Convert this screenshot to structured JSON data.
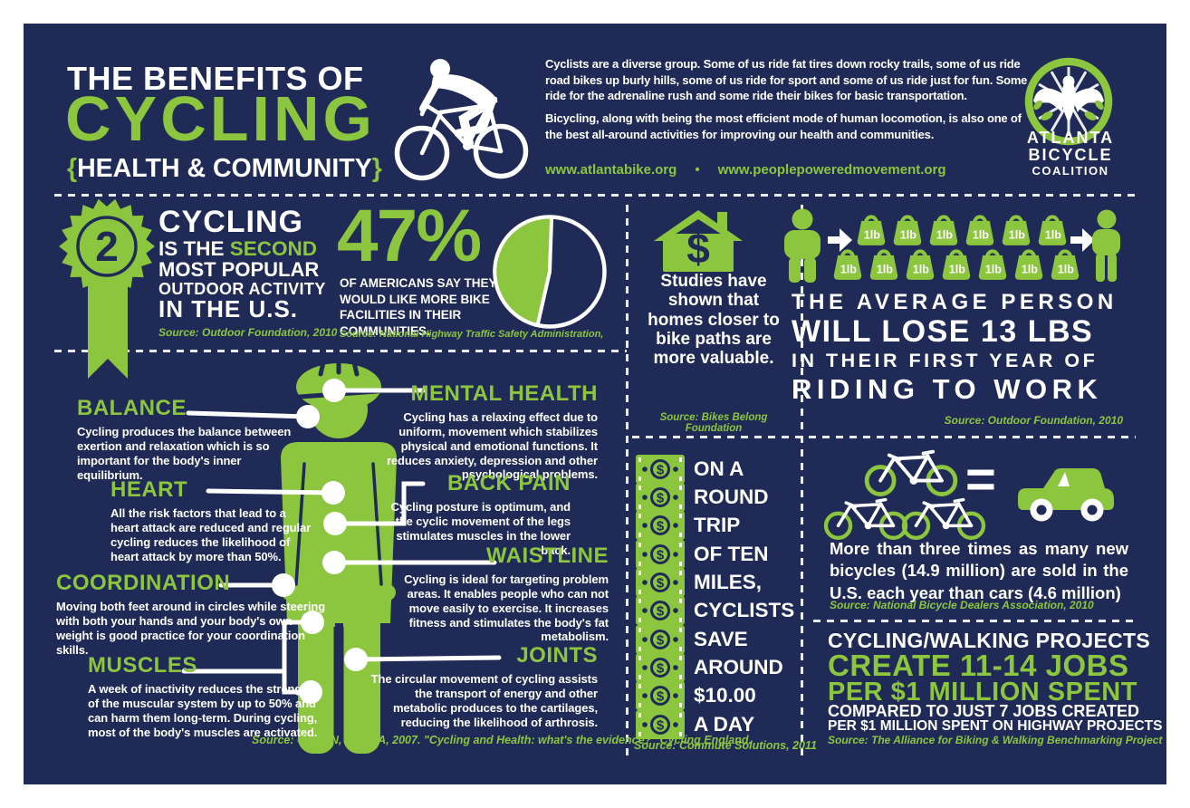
{
  "colors": {
    "navy": "#1f2a56",
    "green": "#8cc63f",
    "white": "#ffffff"
  },
  "header": {
    "title_prefix": "THE BENEFITS OF",
    "title_main": "CYCLING",
    "subtitle_open": "{",
    "subtitle": "HEALTH & COMMUNITY",
    "subtitle_close": "}",
    "intro_p1": "Cyclists are a diverse group. Some of us ride fat tires down rocky trails, some of us ride road bikes up burly hills, some of us ride for sport and some of us ride just for fun. Some ride for the adrenaline rush and some ride their bikes for basic transportation.",
    "intro_p2": "Bicycling, along with being the most efficient mode of human locomotion, is also one of the best all-around activities for improving our health and communities.",
    "url_left": "www.atlantabike.org",
    "url_separator": "•",
    "url_right": "www.peoplepoweredmovement.org",
    "logo_line1": "ATLANTA",
    "logo_line2": "BICYCLE",
    "logo_line3": "COALITION"
  },
  "popularity": {
    "badge_number": "2",
    "line1": "CYCLING",
    "line2_prefix": "IS THE ",
    "line2_highlight": "SECOND",
    "line3": "MOST POPULAR",
    "line4": "OUTDOOR ACTIVITY",
    "line5": "IN THE U.S.",
    "source": "Source: Outdoor Foundation, 2010"
  },
  "facilities": {
    "stat": "47%",
    "description": "OF AMERICANS SAY THEY WOULD LIKE MORE BIKE FACILITIES IN THEIR COMMUNITIES.",
    "source": "Source: National Highway Traffic Safety Administration,"
  },
  "homes": {
    "dollar_sign": "$",
    "text": "Studies have shown that homes closer to bike paths are more valuable.",
    "source": "Source: Bikes Belong Foundation"
  },
  "weight_loss": {
    "bag_label": "1lb",
    "bags_row1_count": 6,
    "bags_row2_count": 7,
    "line1": "THE AVERAGE PERSON",
    "line2": "WILL LOSE 13 LBS",
    "line3": "IN THEIR FIRST YEAR OF",
    "line4": "RIDING TO WORK",
    "source": "Source: Outdoor Foundation, 2010"
  },
  "body_benefits": {
    "balance": {
      "title": "BALANCE",
      "text": "Cycling produces the balance between exertion and relaxation which is so important for the body's inner equilibrium."
    },
    "heart": {
      "title": "HEART",
      "text": "All the risk factors that lead to a heart attack are reduced and regular cycling reduces the likelihood of heart attack by more than 50%."
    },
    "coordination": {
      "title": "COORDINATION",
      "text": "Moving both feet around in circles while steering with both your hands and your body's own weight is good practice for your coordination skills."
    },
    "muscles": {
      "title": "MUSCLES",
      "text": "A week of inactivity reduces the strength of the muscular system by up to 50% and can harm them long-term. During cycling, most of the body's muscles are activated."
    },
    "mental_health": {
      "title": "MENTAL HEALTH",
      "text": "Cycling has a relaxing effect due to uniform, movement which stabilizes physical and emotional functions. It reduces anxiety, depression and other psychological problems."
    },
    "back_pain": {
      "title": "BACK PAIN",
      "text": "Cycling posture is optimum, and the cyclic movement of the legs stimulates muscles in the lower back."
    },
    "waistline": {
      "title": "WAISTLINE",
      "text": "Cycling is ideal for targeting problem areas. It enables people who can not move easily to exercise. It increases fitness and stimulates the body's fat metabolism."
    },
    "joints": {
      "title": "JOINTS",
      "text": "The circular movement of cycling assists the transport of energy and other metabolic produces to the cartilages, reducing the likelihood of arthrosis."
    },
    "source": "Source: Cavill N, Davis A, 2007. \"Cycling and Health: what's the evidence?\" Cycling England."
  },
  "savings": {
    "lines": [
      "ON A",
      "ROUND",
      "TRIP",
      "OF TEN",
      "MILES,",
      "CYCLISTS",
      "SAVE",
      "AROUND",
      "$10.00",
      "A DAY"
    ],
    "bill_dollar": "$",
    "source": "Source: Commute Solutions, 2011"
  },
  "bike_sales": {
    "equals_sign": "=",
    "text": "More than three times as many new bicycles (14.9 million) are sold in the U.S. each year than cars (4.6 million)",
    "source": "Source: National Bicycle Dealers Association, 2010"
  },
  "jobs": {
    "line1": "CYCLING/WALKING PROJECTS",
    "line2": "CREATE 11-14 JOBS",
    "line3": "PER $1 MILLION SPENT",
    "line4": "COMPARED TO JUST 7 JOBS CREATED",
    "line5": "PER $1 MILLION SPENT ON HIGHWAY PROJECTS",
    "source": "Source: The Alliance for Biking & Walking Benchmarking Project"
  },
  "chart_data": {
    "type": "pie",
    "title": "47% of Americans say they would like more bike facilities in their communities",
    "slices": [
      {
        "label": "Would like more bike facilities",
        "value": 47,
        "color": "#8cc63f"
      },
      {
        "label": "Others",
        "value": 53,
        "color": "#1f2a56"
      }
    ],
    "legend": "none"
  }
}
